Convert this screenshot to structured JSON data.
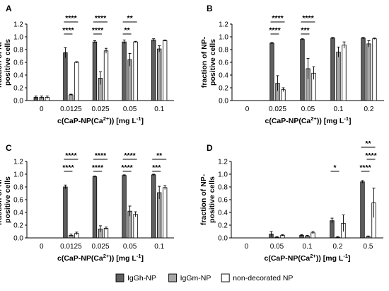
{
  "legend": {
    "entries": [
      {
        "name": "IgGh-NP",
        "color": "#5f5f5f"
      },
      {
        "name": "IgGm-NP",
        "color": "#a6a6a6"
      },
      {
        "name": "non-decorated NP",
        "color": "#ffffff"
      }
    ],
    "placement": "bottom-center"
  },
  "chart_data": [
    {
      "type": "bar",
      "panel_label": "A",
      "ylabel": "fraction of NP-positive cells",
      "ylabel_lines": [
        "fraction of NP-",
        "positive cells"
      ],
      "xlabel_parts": [
        "c(CaP-NP(Ca",
        "2+",
        ")) [mg L",
        "-1",
        "]"
      ],
      "ylim": [
        0,
        1.2
      ],
      "yticks": [
        "0.0",
        "0.2",
        "0.4",
        "0.6",
        "0.8",
        "1.0",
        "1.2"
      ],
      "categories": [
        "0",
        "0.0125",
        "0.025",
        "0.05",
        "0.1"
      ],
      "series": [
        {
          "name": "IgGh-NP",
          "values": [
            0.05,
            0.75,
            0.92,
            0.92,
            0.95
          ],
          "errors": [
            0.02,
            0.08,
            0.02,
            0.03,
            0.02
          ]
        },
        {
          "name": "IgGm-NP",
          "values": [
            0.05,
            0.09,
            0.35,
            0.64,
            0.81
          ],
          "errors": [
            0.02,
            0.01,
            0.1,
            0.1,
            0.05
          ]
        },
        {
          "name": "non-decorated NP",
          "values": [
            0.05,
            0.6,
            0.78,
            0.92,
            0.94
          ],
          "errors": [
            0.02,
            0.01,
            0.04,
            0.01,
            0.01
          ]
        }
      ],
      "significance": [
        {
          "category": 1,
          "from": 0,
          "to": 1,
          "label": "****",
          "level": 1
        },
        {
          "category": 1,
          "from": 0,
          "to": 2,
          "label": "****",
          "level": 2
        },
        {
          "category": 2,
          "from": 0,
          "to": 1,
          "label": "****",
          "level": 1
        },
        {
          "category": 2,
          "from": 0,
          "to": 2,
          "label": "****",
          "level": 2
        },
        {
          "category": 3,
          "from": 0,
          "to": 1,
          "label": "**",
          "level": 1
        },
        {
          "category": 3,
          "from": 0,
          "to": 2,
          "label": "**",
          "level": 2
        }
      ]
    },
    {
      "type": "bar",
      "panel_label": "B",
      "ylabel": "fraction of NP-positive cells",
      "ylabel_lines": [
        "fraction of NP-",
        "positive cells"
      ],
      "xlabel_parts": [
        "c(CaP-NP(Ca",
        "2+",
        ")) [mg L",
        "-1",
        "]"
      ],
      "ylim": [
        0,
        1.2
      ],
      "yticks": [
        "0.0",
        "0.2",
        "0.4",
        "0.6",
        "0.8",
        "1.0",
        "1.2"
      ],
      "categories": [
        "0",
        "0.025",
        "0.05",
        "0.1",
        "0.2"
      ],
      "series": [
        {
          "name": "IgGh-NP",
          "values": [
            0.0,
            0.9,
            0.96,
            0.98,
            0.98
          ],
          "errors": [
            0,
            0.01,
            0.01,
            0.01,
            0.01
          ]
        },
        {
          "name": "IgGm-NP",
          "values": [
            0.0,
            0.27,
            0.5,
            0.76,
            0.89
          ],
          "errors": [
            0,
            0.12,
            0.16,
            0.08,
            0.05
          ]
        },
        {
          "name": "non-decorated NP",
          "values": [
            0.0,
            0.17,
            0.43,
            0.87,
            0.97
          ],
          "errors": [
            0,
            0.03,
            0.1,
            0.05,
            0.01
          ]
        }
      ],
      "significance": [
        {
          "category": 1,
          "from": 0,
          "to": 1,
          "label": "****",
          "level": 1
        },
        {
          "category": 1,
          "from": 0,
          "to": 2,
          "label": "****",
          "level": 2
        },
        {
          "category": 2,
          "from": 0,
          "to": 1,
          "label": "***",
          "level": 1
        },
        {
          "category": 2,
          "from": 0,
          "to": 2,
          "label": "****",
          "level": 2
        }
      ]
    },
    {
      "type": "bar",
      "panel_label": "C",
      "ylabel": "fraction of NP-positive cells",
      "ylabel_lines": [
        "fraction of NP-",
        "positive cells"
      ],
      "xlabel_parts": [
        "c(CaP-NP(Ca",
        "2+",
        ")) [mg L",
        "-1",
        "]"
      ],
      "ylim": [
        0,
        1.2
      ],
      "yticks": [
        "0.0",
        "0.2",
        "0.4",
        "0.6",
        "0.8",
        "1.0",
        "1.2"
      ],
      "categories": [
        "0",
        "0.0125",
        "0.025",
        "0.05",
        "0.1"
      ],
      "series": [
        {
          "name": "IgGh-NP",
          "values": [
            0.0,
            0.8,
            0.96,
            0.98,
            0.99
          ],
          "errors": [
            0,
            0.03,
            0.01,
            0.01,
            0.01
          ]
        },
        {
          "name": "IgGm-NP",
          "values": [
            0.0,
            0.04,
            0.14,
            0.42,
            0.71
          ],
          "errors": [
            0,
            0.02,
            0.05,
            0.08,
            0.1
          ]
        },
        {
          "name": "non-decorated NP",
          "values": [
            0.0,
            0.07,
            0.15,
            0.37,
            0.79
          ],
          "errors": [
            0,
            0.02,
            0.02,
            0.04,
            0.03
          ]
        }
      ],
      "significance": [
        {
          "category": 1,
          "from": 0,
          "to": 1,
          "label": "****",
          "level": 1
        },
        {
          "category": 1,
          "from": 0,
          "to": 2,
          "label": "****",
          "level": 2
        },
        {
          "category": 2,
          "from": 0,
          "to": 1,
          "label": "****",
          "level": 1
        },
        {
          "category": 2,
          "from": 0,
          "to": 2,
          "label": "****",
          "level": 2
        },
        {
          "category": 3,
          "from": 0,
          "to": 1,
          "label": "****",
          "level": 1
        },
        {
          "category": 3,
          "from": 0,
          "to": 2,
          "label": "****",
          "level": 2
        },
        {
          "category": 4,
          "from": 0,
          "to": 1,
          "label": "***",
          "level": 1
        },
        {
          "category": 4,
          "from": 0,
          "to": 2,
          "label": "**",
          "level": 2
        }
      ]
    },
    {
      "type": "bar",
      "panel_label": "D",
      "ylabel": "fraction of NP-positive cells",
      "ylabel_lines": [
        "fraction of NP-",
        "positive cells"
      ],
      "xlabel_parts": [
        "c(CaP-NP(Ca",
        "2+",
        ")) [mg L",
        "-1",
        "]"
      ],
      "ylim": [
        0,
        1.2
      ],
      "yticks": [
        "0.0",
        "0.2",
        "0.4",
        "0.6",
        "0.8",
        "1.0",
        "1.2"
      ],
      "categories": [
        "0",
        "0.05",
        "0.1",
        "0.2",
        "0.5"
      ],
      "series": [
        {
          "name": "IgGh-NP",
          "values": [
            0.0,
            0.06,
            0.04,
            0.27,
            0.88
          ],
          "errors": [
            0,
            0.04,
            0.01,
            0.04,
            0.02
          ]
        },
        {
          "name": "IgGm-NP",
          "values": [
            0.0,
            0.01,
            0.03,
            0.01,
            0.02
          ],
          "errors": [
            0,
            0.01,
            0.01,
            0.01,
            0.01
          ]
        },
        {
          "name": "non-decorated NP",
          "values": [
            0.0,
            0.04,
            0.08,
            0.23,
            0.55
          ],
          "errors": [
            0,
            0.01,
            0.02,
            0.13,
            0.23
          ]
        }
      ],
      "significance": [
        {
          "category": 3,
          "from": 0,
          "to": 1,
          "label": "*",
          "level": 1
        },
        {
          "category": 4,
          "from": 0,
          "to": 1,
          "label": "****",
          "level": 1
        },
        {
          "category": 4,
          "from": 1,
          "to": 2,
          "label": "****",
          "level": 2
        },
        {
          "category": 4,
          "from": 0,
          "to": 2,
          "label": "**",
          "level": 3
        }
      ]
    }
  ]
}
